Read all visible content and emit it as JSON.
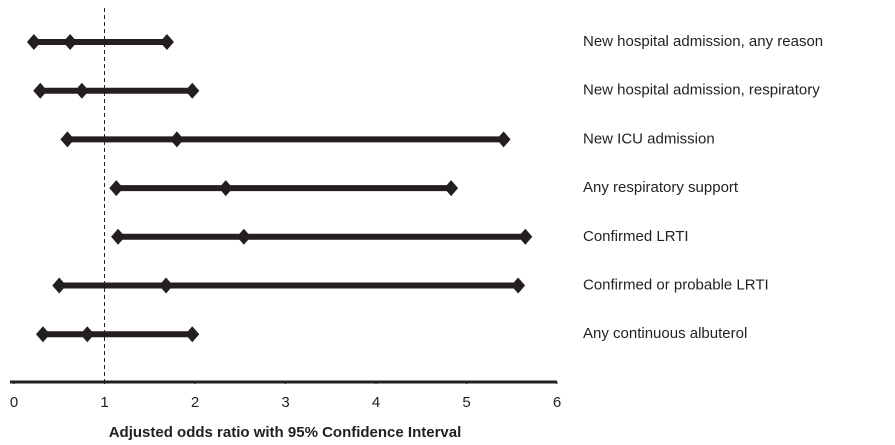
{
  "chart_data": {
    "type": "forest",
    "categories": [
      "New hospital admission, any reason",
      "New hospital admission, respiratory",
      "New ICU admission",
      "Any respiratory support",
      "Confirmed LRTI",
      "Confirmed or probable LRTI",
      "Any continuous albuterol"
    ],
    "values": [
      0.62,
      0.75,
      1.8,
      2.34,
      2.54,
      1.68,
      0.81
    ],
    "lower": [
      0.22,
      0.29,
      0.59,
      1.13,
      1.15,
      0.5,
      0.32
    ],
    "upper": [
      1.69,
      1.97,
      5.41,
      4.83,
      5.65,
      5.57,
      1.97
    ],
    "color": "#231f20",
    "reference": 1,
    "xlabel": "Adjusted odds ratio with 95% Confidence Interval",
    "xlim": [
      0,
      6
    ],
    "xticks": [
      0,
      1,
      2,
      3,
      4,
      5,
      6
    ]
  }
}
